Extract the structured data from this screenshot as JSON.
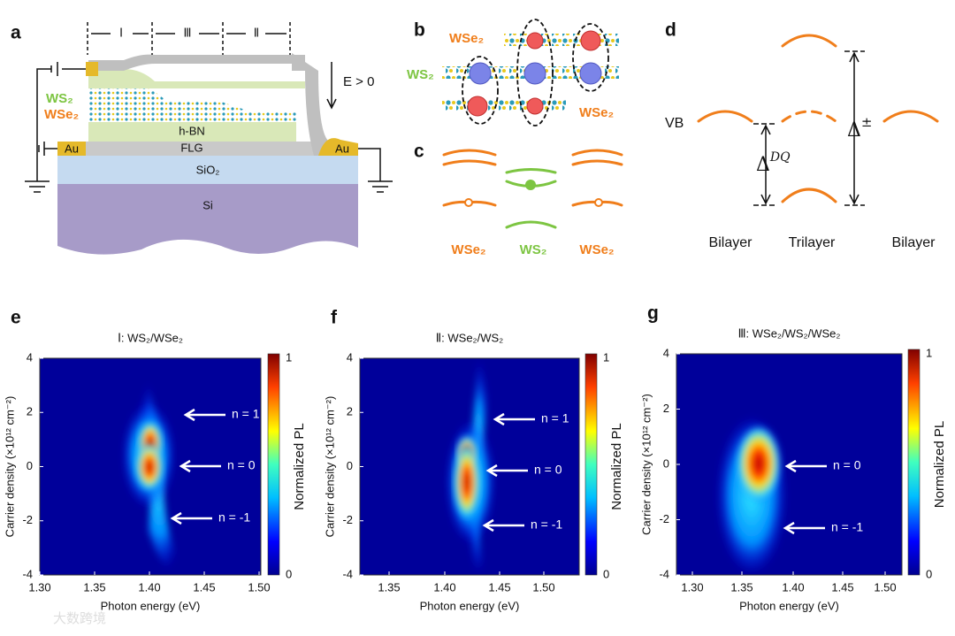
{
  "panel_labels": [
    "a",
    "b",
    "c",
    "d",
    "e",
    "f",
    "g"
  ],
  "a": {
    "regions": [
      "Ⅰ",
      "Ⅲ",
      "Ⅱ"
    ],
    "ws2": "WS₂",
    "wse2": "WSe₂",
    "hbn": "h-BN",
    "flg": "FLG",
    "sio2": "SiO₂",
    "si": "Si",
    "au_left": "Au",
    "au_right": "Au",
    "field": "E > 0"
  },
  "b": {
    "top": "WSe₂",
    "middle": "WS₂",
    "bottom": "WSe₂"
  },
  "c": {
    "labels": [
      "WSe₂",
      "WS₂",
      "WSe₂"
    ]
  },
  "d": {
    "vb": "VB",
    "delta_dq": {
      "symbol": "Δ",
      "superscript": "DQ"
    },
    "delta_pm": {
      "symbol": "Δ",
      "superscript": "±"
    },
    "labels": [
      "Bilayer",
      "Trilayer",
      "Bilayer"
    ]
  },
  "heatmaps": [
    {
      "title": "Ⅰ: WS₂/WSe₂",
      "xticks": [
        "1.30",
        "1.35",
        "1.40",
        "1.45",
        "1.50"
      ],
      "yticks": [
        "4",
        "2",
        "0",
        "-2",
        "-4"
      ],
      "cbar_ticks": [
        "1",
        "0"
      ],
      "xlabel": "Photon energy (eV)",
      "ylabel": "Carrier density (×10¹² cm⁻²)",
      "cbar_label": "Normalized PL",
      "arrows": [
        "n = 1",
        "n = 0",
        "n = -1"
      ]
    },
    {
      "title": "Ⅱ: WSe₂/WS₂",
      "xticks": [
        "1.35",
        "1.40",
        "1.45",
        "1.50"
      ],
      "yticks": [
        "4",
        "2",
        "0",
        "-2",
        "-4"
      ],
      "cbar_ticks": [
        "1",
        "0"
      ],
      "xlabel": "Photon energy (eV)",
      "ylabel": "Carrier density (×10¹² cm⁻²)",
      "cbar_label": "Normalized PL",
      "arrows": [
        "n = 1",
        "n = 0",
        "n = -1"
      ]
    },
    {
      "title": "Ⅲ: WSe₂/WS₂/WSe₂",
      "xticks": [
        "1.30",
        "1.35",
        "1.40",
        "1.45",
        "1.50"
      ],
      "yticks": [
        "4",
        "2",
        "0",
        "-2",
        "-4"
      ],
      "cbar_ticks": [
        "1",
        "0"
      ],
      "xlabel": "Photon energy (eV)",
      "ylabel": "Carrier density (×10¹² cm⁻²)",
      "cbar_label": "Normalized PL",
      "arrows": [
        "n = 0",
        "n = -1"
      ]
    }
  ],
  "watermark": "大数跨境"
}
